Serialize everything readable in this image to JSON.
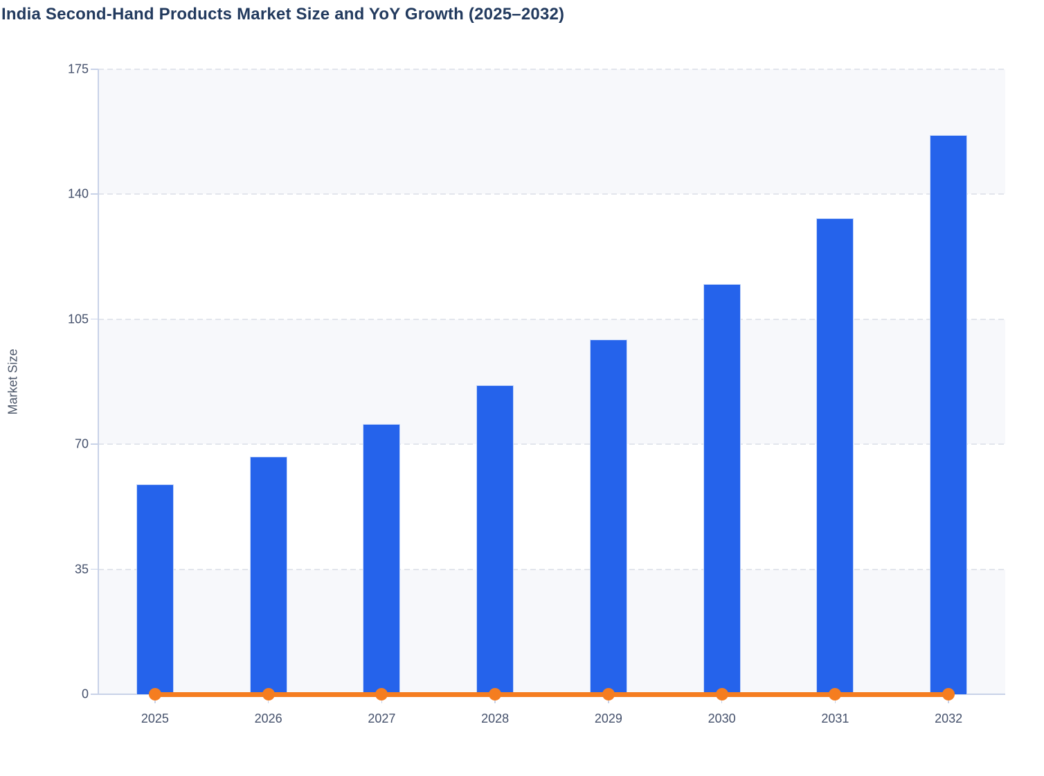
{
  "chart_data": {
    "type": "bar",
    "title": "India Second-Hand Products Market Size and YoY Growth (2025–2032)",
    "xlabel": "",
    "ylabel": "Market Size",
    "categories": [
      "2025",
      "2026",
      "2027",
      "2028",
      "2029",
      "2030",
      "2031",
      "2032"
    ],
    "series": [
      {
        "name": "Market Size",
        "type": "bar",
        "color": "#2563eb",
        "values": [
          58.8,
          66.6,
          75.7,
          86.6,
          99.4,
          114.8,
          133.2,
          156.5
        ]
      },
      {
        "name": "YoY Growth",
        "type": "line",
        "color": "#f57d20",
        "values": [
          0,
          0,
          0,
          0,
          0,
          0,
          0,
          0
        ]
      }
    ],
    "ylim": [
      0,
      175
    ],
    "yticks": [
      0,
      35,
      70,
      105,
      140,
      175
    ],
    "ytick_labels": [
      "0",
      "35",
      "70",
      "105",
      "140",
      "175"
    ],
    "grid": "dashed horizontal, alternating background bands",
    "legend": "none"
  },
  "colors": {
    "bar": "#2563eb",
    "line": "#f57d20",
    "band": "#f7f8fb",
    "gridline": "#e2e5ec",
    "axis_line": "#c8d2e8",
    "tick_label": "#44506b",
    "title": "#223a5e",
    "axis_title": "#4a5568"
  }
}
